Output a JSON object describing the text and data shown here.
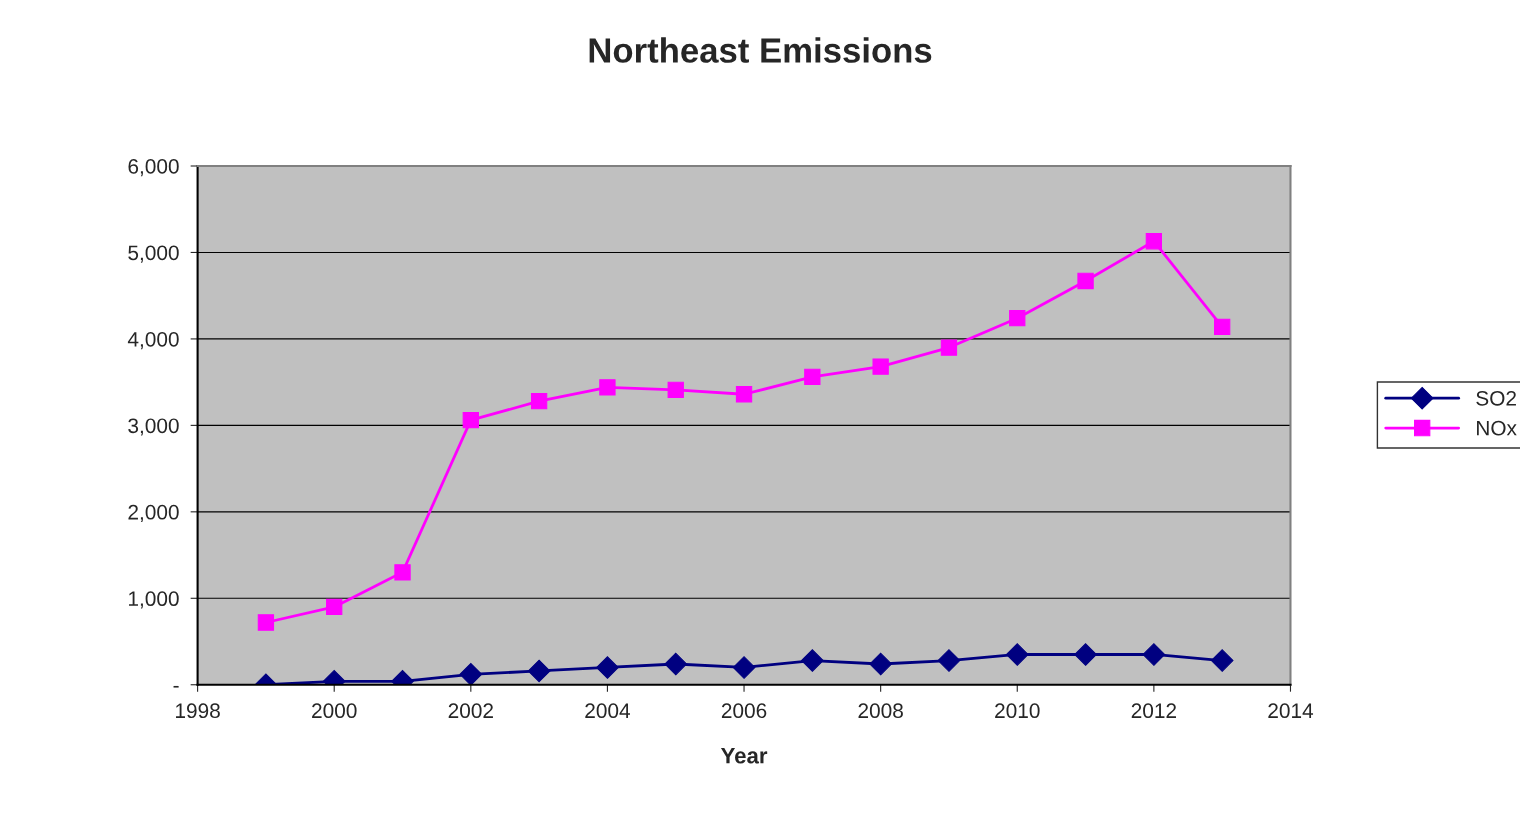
{
  "chart_data": {
    "type": "line",
    "title": "Northeast Emissions",
    "xlabel": "Year",
    "x": [
      1999,
      2000,
      2001,
      2002,
      2003,
      2004,
      2005,
      2006,
      2007,
      2008,
      2009,
      2010,
      2011,
      2012,
      2013
    ],
    "series": [
      {
        "name": "SO2",
        "color": "#000080",
        "marker": "diamond",
        "values": [
          0,
          40,
          40,
          120,
          160,
          200,
          240,
          200,
          280,
          240,
          280,
          350,
          350,
          350,
          280
        ]
      },
      {
        "name": "NOx",
        "color": "#ff00ff",
        "marker": "square",
        "values": [
          720,
          900,
          1300,
          3060,
          3280,
          3440,
          3410,
          3360,
          3560,
          3680,
          3900,
          4240,
          4670,
          5130,
          4140
        ]
      }
    ],
    "xlim": [
      1998,
      2014
    ],
    "xticks": [
      1998,
      2000,
      2002,
      2004,
      2006,
      2008,
      2010,
      2012,
      2014
    ],
    "ylim": [
      0,
      6000
    ],
    "yticks": [
      {
        "value": 0,
        "label": "-"
      },
      {
        "value": 1000,
        "label": "1,000"
      },
      {
        "value": 2000,
        "label": "2,000"
      },
      {
        "value": 3000,
        "label": "3,000"
      },
      {
        "value": 4000,
        "label": "4,000"
      },
      {
        "value": 5000,
        "label": "5,000"
      },
      {
        "value": 6000,
        "label": "6,000"
      }
    ],
    "grid": "y",
    "legend": "right",
    "line_style": "solid"
  }
}
